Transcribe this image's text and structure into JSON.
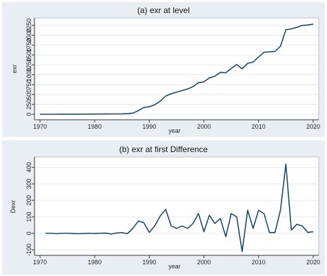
{
  "chart_data": [
    {
      "type": "line",
      "title": "(a) exr at level",
      "xlabel": "year",
      "ylabel": "exr",
      "xlim": [
        1970,
        2020
      ],
      "ylim": [
        0,
        2300
      ],
      "xticks": [
        1970,
        1980,
        1990,
        2000,
        2010,
        2020
      ],
      "yticks": [
        0,
        250,
        500,
        750,
        1000,
        1250,
        1500,
        1750,
        2000,
        2250
      ],
      "grid": false,
      "series": [
        {
          "x": [
            1970,
            1971,
            1972,
            1973,
            1974,
            1975,
            1976,
            1977,
            1978,
            1979,
            1980,
            1981,
            1982,
            1983,
            1984,
            1985,
            1986,
            1987,
            1988,
            1989,
            1990,
            1991,
            1992,
            1993,
            1994,
            1995,
            1996,
            1997,
            1998,
            1999,
            2000,
            2001,
            2002,
            2003,
            2004,
            2005,
            2006,
            2007,
            2008,
            2009,
            2010,
            2011,
            2012,
            2013,
            2014,
            2015,
            2016,
            2017,
            2018,
            2019,
            2020
          ],
          "y": [
            0,
            0,
            0,
            0,
            1,
            2,
            2,
            3,
            3,
            4,
            5,
            6,
            7,
            8,
            9,
            10,
            15,
            30,
            90,
            170,
            190,
            240,
            330,
            460,
            520,
            560,
            600,
            640,
            700,
            800,
            820,
            920,
            960,
            1060,
            1050,
            1160,
            1260,
            1150,
            1290,
            1320,
            1450,
            1570,
            1580,
            1590,
            1720,
            2140,
            2160,
            2200,
            2250,
            2260,
            2280
          ]
        }
      ]
    },
    {
      "type": "line",
      "title": "(b) exr at first Difference",
      "xlabel": "year",
      "ylabel": "Dexr",
      "xlim": [
        1970,
        2020
      ],
      "ylim": [
        -100,
        430
      ],
      "xticks": [
        1970,
        1980,
        1990,
        2000,
        2010,
        2020
      ],
      "yticks": [
        -100,
        0,
        100,
        200,
        300,
        400
      ],
      "grid": false,
      "series": [
        {
          "x": [
            1971,
            1972,
            1973,
            1974,
            1975,
            1976,
            1977,
            1978,
            1979,
            1980,
            1981,
            1982,
            1983,
            1984,
            1985,
            1986,
            1987,
            1988,
            1989,
            1990,
            1991,
            1992,
            1993,
            1994,
            1995,
            1996,
            1997,
            1998,
            1999,
            2000,
            2001,
            2002,
            2003,
            2004,
            2005,
            2006,
            2007,
            2008,
            2009,
            2010,
            2011,
            2012,
            2013,
            2014,
            2015,
            2016,
            2017,
            2018,
            2019,
            2020
          ],
          "y": [
            0,
            0,
            -2,
            0,
            0,
            -1,
            -2,
            -1,
            0,
            -1,
            0,
            2,
            -4,
            2,
            4,
            -2,
            30,
            75,
            65,
            5,
            45,
            105,
            145,
            45,
            30,
            45,
            30,
            60,
            120,
            10,
            110,
            60,
            90,
            -20,
            120,
            100,
            -110,
            140,
            30,
            140,
            120,
            5,
            5,
            140,
            420,
            20,
            55,
            45,
            5,
            10
          ]
        }
      ]
    }
  ]
}
